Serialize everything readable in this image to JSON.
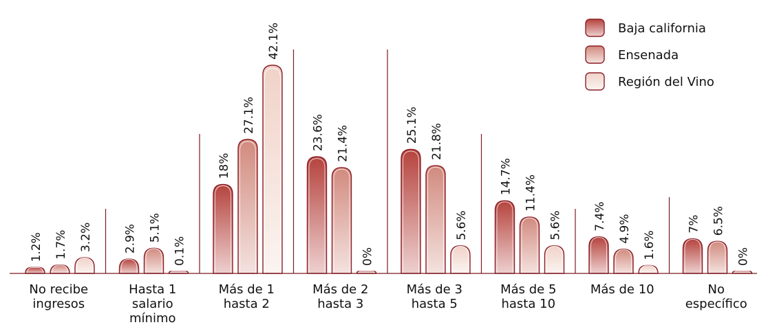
{
  "chart_data": {
    "type": "bar",
    "title": "",
    "xlabel": "",
    "ylabel": "",
    "ylim": [
      0,
      45
    ],
    "grid": false,
    "legend_position": "top-right",
    "categories": [
      [
        "No recibe",
        "ingresos"
      ],
      [
        "Hasta 1",
        "salario",
        "mínimo"
      ],
      [
        "Más de 1",
        "hasta 2"
      ],
      [
        "Más de 2",
        "hasta 3"
      ],
      [
        "Más de 3",
        "hasta 5"
      ],
      [
        "Más de 5",
        "hasta 10"
      ],
      [
        "Más de 10"
      ],
      [
        "No",
        "específico"
      ]
    ],
    "series": [
      {
        "name": "Baja california",
        "color": "#b5433d",
        "values": [
          1.2,
          2.9,
          18,
          23.6,
          25.1,
          14.7,
          7.4,
          7
        ],
        "labels": [
          "1.2%",
          "2.9%",
          "18%",
          "23.6%",
          "25.1%",
          "14.7%",
          "7.4%",
          "7%"
        ]
      },
      {
        "name": "Ensenada",
        "color": "#d18a7e",
        "values": [
          1.7,
          5.1,
          27.1,
          21.4,
          21.8,
          11.4,
          4.9,
          6.5
        ],
        "labels": [
          "1.7%",
          "5.1%",
          "27.1%",
          "21.4%",
          "21.8%",
          "11.4%",
          "4.9%",
          "6.5%"
        ]
      },
      {
        "name": "Región del Vino",
        "color": "#f0d2c8",
        "values": [
          3.2,
          0.1,
          42.1,
          0,
          5.6,
          5.6,
          1.6,
          0
        ],
        "labels": [
          "3.2%",
          "0.1%",
          "42.1%",
          "0%",
          "5.6%",
          "5.6%",
          "1.6%",
          "0%"
        ]
      }
    ]
  }
}
